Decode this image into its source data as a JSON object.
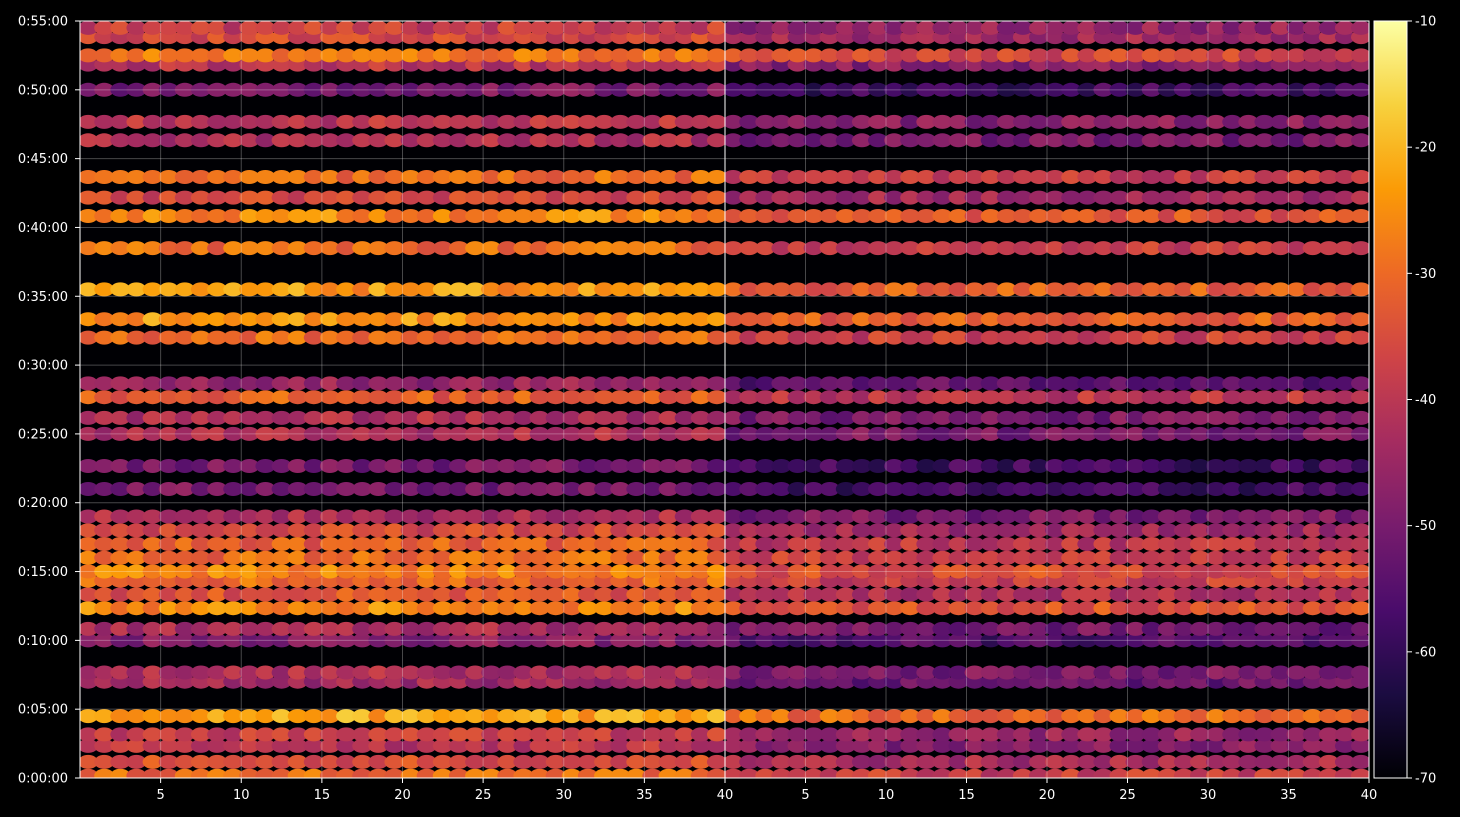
{
  "chart_data": {
    "type": "heatmap",
    "title": "",
    "xlabel": "",
    "ylabel": "",
    "grid": true,
    "colormap": "inferno",
    "colorbar": {
      "range": [
        -70,
        -10
      ],
      "ticks": [
        "-10",
        "-20",
        "-30",
        "-40",
        "-50",
        "-60",
        "-70"
      ],
      "tick_values": [
        -10,
        -20,
        -30,
        -40,
        -50,
        -60,
        -70
      ],
      "stops": [
        "#000004",
        "#1b0c41",
        "#4a0c6b",
        "#781c6d",
        "#a52c60",
        "#cf4446",
        "#ed6925",
        "#fb9b06",
        "#f7d13d",
        "#fcffa4"
      ]
    },
    "panels": [
      {
        "name": "left",
        "x_range": [
          1,
          40
        ],
        "x_ticks": [
          "5",
          "10",
          "15",
          "20",
          "25",
          "30",
          "35",
          "40"
        ],
        "x_tick_values": [
          5,
          10,
          15,
          20,
          25,
          30,
          35,
          40
        ],
        "base_level": -45
      },
      {
        "name": "right",
        "x_range": [
          1,
          40
        ],
        "x_ticks": [
          "5",
          "10",
          "15",
          "20",
          "25",
          "30",
          "35",
          "40"
        ],
        "x_tick_values": [
          5,
          10,
          15,
          20,
          25,
          30,
          35,
          40
        ],
        "base_level": -53
      }
    ],
    "y_range_seconds": [
      0,
      3300
    ],
    "y_ticks": [
      "0:00:00",
      "0:05:00",
      "0:10:00",
      "0:15:00",
      "0:20:00",
      "0:25:00",
      "0:30:00",
      "0:35:00",
      "0:40:00",
      "0:45:00",
      "0:50:00",
      "0:55:00"
    ],
    "y_tick_values": [
      0,
      300,
      600,
      900,
      1200,
      1500,
      1800,
      2100,
      2400,
      2700,
      3000,
      3300
    ],
    "rows": [
      {
        "t": 10,
        "level": -30
      },
      {
        "t": 70,
        "level": -35
      },
      {
        "t": 140,
        "level": -40
      },
      {
        "t": 190,
        "level": -38
      },
      {
        "t": 270,
        "level": -22
      },
      {
        "t": 420,
        "level": -44
      },
      {
        "t": 460,
        "level": -42
      },
      {
        "t": 600,
        "level": -48
      },
      {
        "t": 650,
        "level": -43
      },
      {
        "t": 740,
        "level": -26
      },
      {
        "t": 800,
        "level": -34
      },
      {
        "t": 860,
        "level": -30
      },
      {
        "t": 900,
        "level": -27
      },
      {
        "t": 960,
        "level": -30
      },
      {
        "t": 1020,
        "level": -32
      },
      {
        "t": 1080,
        "level": -36
      },
      {
        "t": 1140,
        "level": -42
      },
      {
        "t": 1260,
        "level": -50
      },
      {
        "t": 1360,
        "level": -50
      },
      {
        "t": 1500,
        "level": -42
      },
      {
        "t": 1570,
        "level": -42
      },
      {
        "t": 1660,
        "level": -32
      },
      {
        "t": 1720,
        "level": -46
      },
      {
        "t": 1920,
        "level": -30
      },
      {
        "t": 2000,
        "level": -24
      },
      {
        "t": 2130,
        "level": -24
      },
      {
        "t": 2310,
        "level": -30
      },
      {
        "t": 2450,
        "level": -26
      },
      {
        "t": 2530,
        "level": -36
      },
      {
        "t": 2620,
        "level": -30
      },
      {
        "t": 2780,
        "level": -42
      },
      {
        "t": 2860,
        "level": -40
      },
      {
        "t": 3000,
        "level": -50
      },
      {
        "t": 3110,
        "level": -40
      },
      {
        "t": 3150,
        "level": -28
      },
      {
        "t": 3230,
        "level": -36
      },
      {
        "t": 3270,
        "level": -38
      }
    ]
  }
}
